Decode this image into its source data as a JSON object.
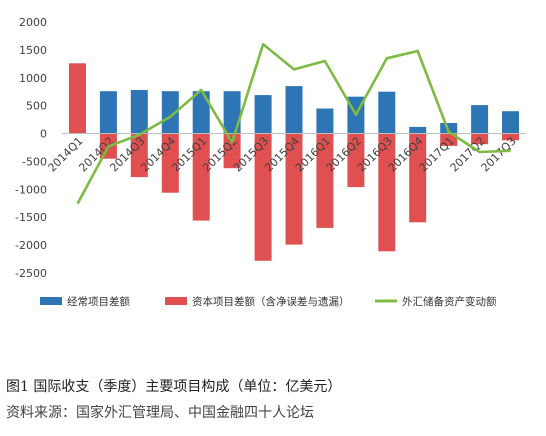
{
  "chart_data": {
    "type": "bar",
    "categories": [
      "2014Q1",
      "2014Q2",
      "2014Q3",
      "2014Q4",
      "2015Q1",
      "2015Q2",
      "2015Q3",
      "2015Q4",
      "2016Q1",
      "2016Q2",
      "2016Q3",
      "2016Q4",
      "2017Q1",
      "2017Q2",
      "2017Q3"
    ],
    "series": [
      {
        "name": "经常项目差额",
        "type": "bar",
        "color": "#2e75b6",
        "values": [
          60,
          760,
          780,
          760,
          760,
          760,
          690,
          850,
          450,
          660,
          750,
          120,
          190,
          510,
          400
        ]
      },
      {
        "name": "资本项目差额（含净误差与遗漏）",
        "type": "bar",
        "color": "#e05050",
        "values": [
          1260,
          -450,
          -780,
          -1060,
          -1560,
          -620,
          -2280,
          -1990,
          -1690,
          -960,
          -2110,
          -1590,
          -220,
          -190,
          -120
        ]
      },
      {
        "name": "外汇储备资产变动额",
        "type": "line",
        "color": "#7dbb42",
        "values": [
          -1260,
          -230,
          -20,
          300,
          780,
          -160,
          1600,
          1150,
          1300,
          340,
          1350,
          1480,
          30,
          -330,
          -310
        ]
      }
    ],
    "ylim": [
      -2500,
      2000
    ],
    "yticks": [
      2000,
      1500,
      1000,
      500,
      0,
      -500,
      -1000,
      -1500,
      -2000,
      -2500
    ],
    "legend_position": "bottom",
    "grid": false
  },
  "caption": {
    "title": "图1   国际收支（季度）主要项目构成（单位：亿美元）",
    "source": "资料来源：国家外汇管理局、中国金融四十人论坛"
  }
}
